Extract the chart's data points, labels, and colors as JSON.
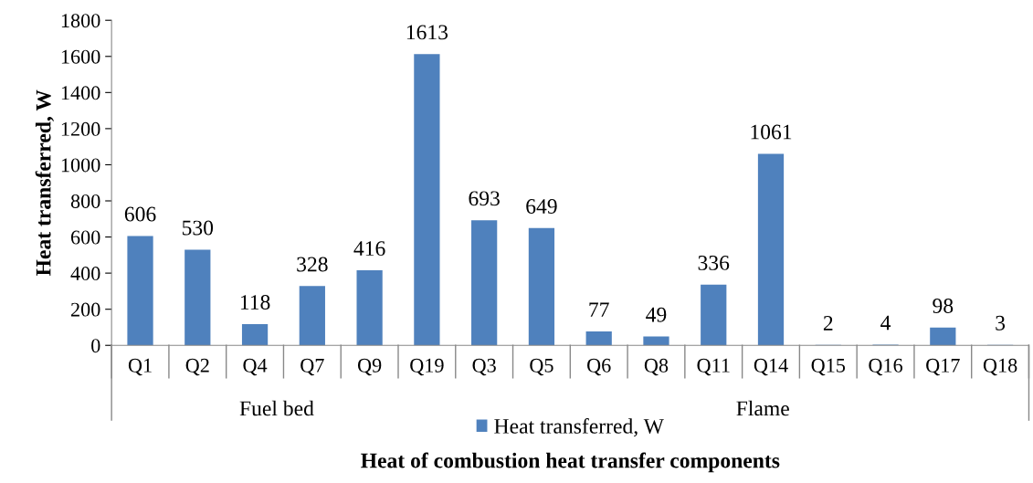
{
  "chart_data": {
    "type": "bar",
    "xlabel": "Heat of combustion heat transfer components",
    "ylabel": "Heat transferred, W",
    "categories": [
      "Q1",
      "Q2",
      "Q4",
      "Q7",
      "Q9",
      "Q19",
      "Q3",
      "Q5",
      "Q6",
      "Q8",
      "Q11",
      "Q14",
      "Q15",
      "Q16",
      "Q17",
      "Q18"
    ],
    "series": [
      {
        "name": "Heat transferred, W",
        "color": "#4f81bd",
        "values": [
          606,
          530,
          118,
          328,
          416,
          1613,
          693,
          649,
          77,
          49,
          336,
          1061,
          2,
          4,
          98,
          3
        ]
      }
    ],
    "ylim": [
      0,
      1800
    ],
    "yticks": [
      0,
      200,
      400,
      600,
      800,
      1000,
      1200,
      1400,
      1600,
      1800
    ],
    "data_labels": true,
    "legend": "bottom",
    "grid": false,
    "annotations": [
      "Fuel bed",
      "Flame"
    ]
  }
}
